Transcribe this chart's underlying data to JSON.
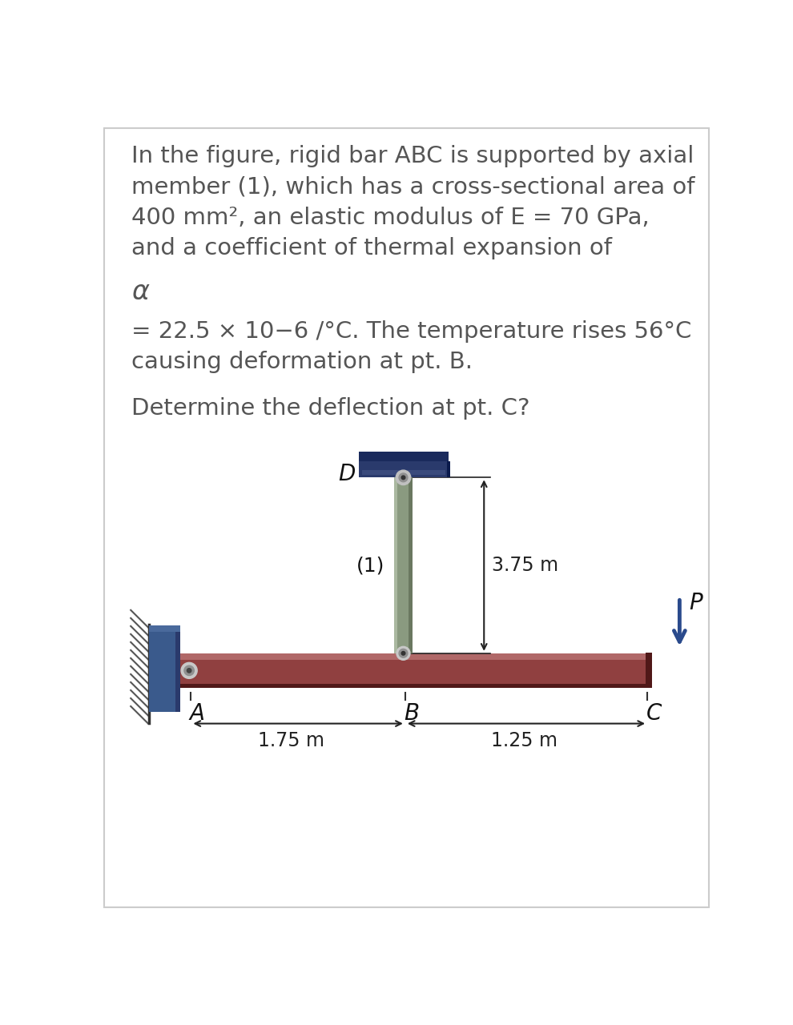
{
  "bg_color": "#ffffff",
  "border_color": "#cccccc",
  "text_lines": [
    "In the figure, rigid bar ABC is supported by axial",
    "member (1), which has a cross-sectional area of",
    "400 mm², an elastic modulus of E = 70 GPa,",
    "and a coefficient of thermal expansion of"
  ],
  "alpha_line": "α",
  "eq_line": "= 22.5 × 10−6 /°C. The temperature rises 56°C",
  "causing_line": "causing deformation at pt. B.",
  "determine_line": "Determine the deflection at pt. C?",
  "text_color": "#555555",
  "text_fontsize": 21,
  "alpha_fontsize": 24,
  "diagram": {
    "wall_color": "#3a5a8c",
    "wall_dark": "#2a3a6c",
    "wall_light": "#4a6a9c",
    "bar_color": "#904040",
    "bar_top": "#b06868",
    "bar_bot": "#501818",
    "member_color": "#8a9a80",
    "member_light": "#aab8a0",
    "member_dark": "#6a7860",
    "ceiling_color": "#2a3a6c",
    "ceiling_top": "#1a2a5c",
    "ceiling_mid": "#3a4a7c",
    "arrow_color": "#2a4a8c",
    "dim_color": "#222222",
    "label_color": "#111111",
    "hatch_color": "#555555"
  }
}
